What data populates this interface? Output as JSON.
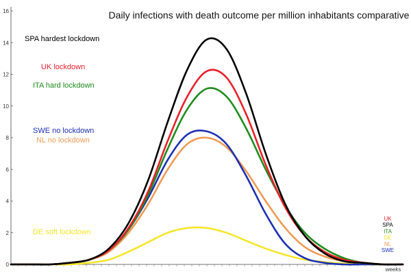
{
  "chart_data": {
    "type": "line",
    "title": "Daily infections with death outcome per million inhabitants comparative",
    "xlabel": "weeks",
    "ylabel": "",
    "ylim": [
      0,
      16
    ],
    "yticks": [
      0,
      2,
      4,
      6,
      8,
      10,
      12,
      14,
      16
    ],
    "grid": false,
    "legend_placement": "bottom-right",
    "series": [
      {
        "name": "UK",
        "annotation": "UK lockdown",
        "color": "#e8202a",
        "values": [
          0,
          0,
          0,
          0.1,
          0.3,
          0.9,
          2.3,
          4.6,
          7.8,
          10.6,
          12.2,
          11.8,
          9.5,
          6.3,
          3.6,
          1.8,
          0.8,
          0.3,
          0.1,
          0,
          0
        ]
      },
      {
        "name": "SPA",
        "annotation": "SPA hardest lockdown",
        "color": "#000000",
        "values": [
          0,
          0,
          0,
          0.1,
          0.3,
          1.0,
          2.6,
          5.3,
          9.0,
          12.3,
          14.2,
          13.6,
          10.8,
          7.0,
          3.8,
          1.8,
          0.7,
          0.2,
          0.1,
          0,
          0
        ]
      },
      {
        "name": "ITA",
        "annotation": "ITA hard lockdown",
        "color": "#1e8c1e",
        "values": [
          0,
          0,
          0,
          0.1,
          0.3,
          0.9,
          2.2,
          4.4,
          7.3,
          9.8,
          11.1,
          10.6,
          8.6,
          6.0,
          3.7,
          2.0,
          1.0,
          0.4,
          0.1,
          0,
          0
        ]
      },
      {
        "name": "DE",
        "annotation": "DE soft lockdown",
        "color": "#f5e62a",
        "values": [
          0,
          0,
          0,
          0,
          0.1,
          0.3,
          0.8,
          1.4,
          2.0,
          2.3,
          2.3,
          2.0,
          1.5,
          1.0,
          0.6,
          0.3,
          0.15,
          0.05,
          0,
          0,
          0
        ]
      },
      {
        "name": "NL",
        "annotation": "NL no lockdown",
        "color": "#ee9a55",
        "values": [
          0,
          0,
          0,
          0.1,
          0.3,
          0.8,
          2.0,
          3.8,
          6.0,
          7.6,
          8.0,
          7.4,
          5.9,
          4.0,
          2.3,
          1.1,
          0.5,
          0.2,
          0.1,
          0,
          0
        ]
      },
      {
        "name": "SWE",
        "annotation": "SWE no lockdown",
        "color": "#1c2fb0",
        "values": [
          0,
          0,
          0,
          0.1,
          0.3,
          0.9,
          2.2,
          4.2,
          6.6,
          8.2,
          8.4,
          7.6,
          5.6,
          3.2,
          1.3,
          0.4,
          0.1,
          0,
          0,
          0,
          0
        ]
      }
    ],
    "annotations_order": [
      "SPA",
      "UK",
      "ITA",
      "SWE",
      "NL",
      "DE"
    ],
    "legend_order": [
      "UK",
      "SPA",
      "ITA",
      "DE",
      "NL",
      "SWE"
    ]
  }
}
